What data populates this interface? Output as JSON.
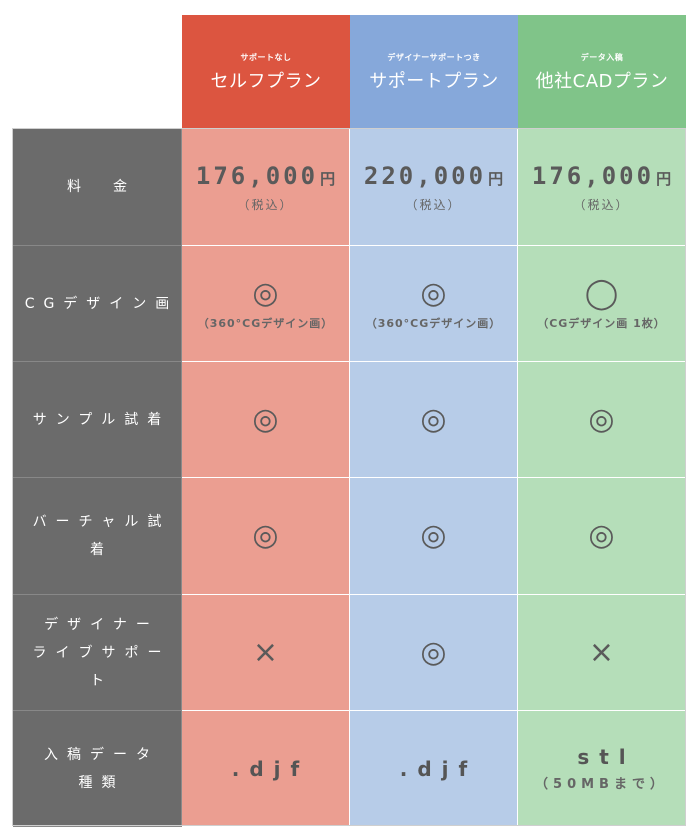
{
  "colors": {
    "self_header": "#dc5540",
    "support_header": "#86a8da",
    "cad_header": "#80c489",
    "self_column": "#eb9e91",
    "support_column": "#b7cce8",
    "cad_column": "#b5deb9",
    "label_column": "#6b6b6b"
  },
  "plans": [
    {
      "sub": "サポートなし",
      "name": "セルフプラン"
    },
    {
      "sub": "デザイナーサポートつき",
      "name": "サポートプラン"
    },
    {
      "sub": "データ入稿",
      "name": "他社CADプラン"
    }
  ],
  "rows": {
    "price": {
      "label": "料　金",
      "cells": [
        {
          "amount": "176,000",
          "unit": "円",
          "tax": "（税込）"
        },
        {
          "amount": "220,000",
          "unit": "円",
          "tax": "（税込）"
        },
        {
          "amount": "176,000",
          "unit": "円",
          "tax": "（税込）"
        }
      ]
    },
    "cg": {
      "label": "CGデザイン画",
      "cells": [
        {
          "mark": "◎",
          "note": "（360°CGデザイン画）"
        },
        {
          "mark": "◎",
          "note": "（360°CGデザイン画）"
        },
        {
          "mark": "◯",
          "note": "（CGデザイン画 1枚）"
        }
      ]
    },
    "sample": {
      "label": "サンプル試着",
      "cells": [
        {
          "mark": "◎"
        },
        {
          "mark": "◎"
        },
        {
          "mark": "◎"
        }
      ]
    },
    "virtual": {
      "label": "バーチャル試着",
      "cells": [
        {
          "mark": "◎"
        },
        {
          "mark": "◎"
        },
        {
          "mark": "◎"
        }
      ]
    },
    "designer": {
      "label_line1": "デザイナー",
      "label_line2": "ライブサポート",
      "cells": [
        {
          "mark": "×"
        },
        {
          "mark": "◎"
        },
        {
          "mark": "×"
        }
      ]
    },
    "file": {
      "label_line1": "入稿データ",
      "label_line2": "種類",
      "cells": [
        {
          "type": ".djf"
        },
        {
          "type": ".djf"
        },
        {
          "type": "stl",
          "note": "（50MBまで）"
        }
      ]
    }
  }
}
